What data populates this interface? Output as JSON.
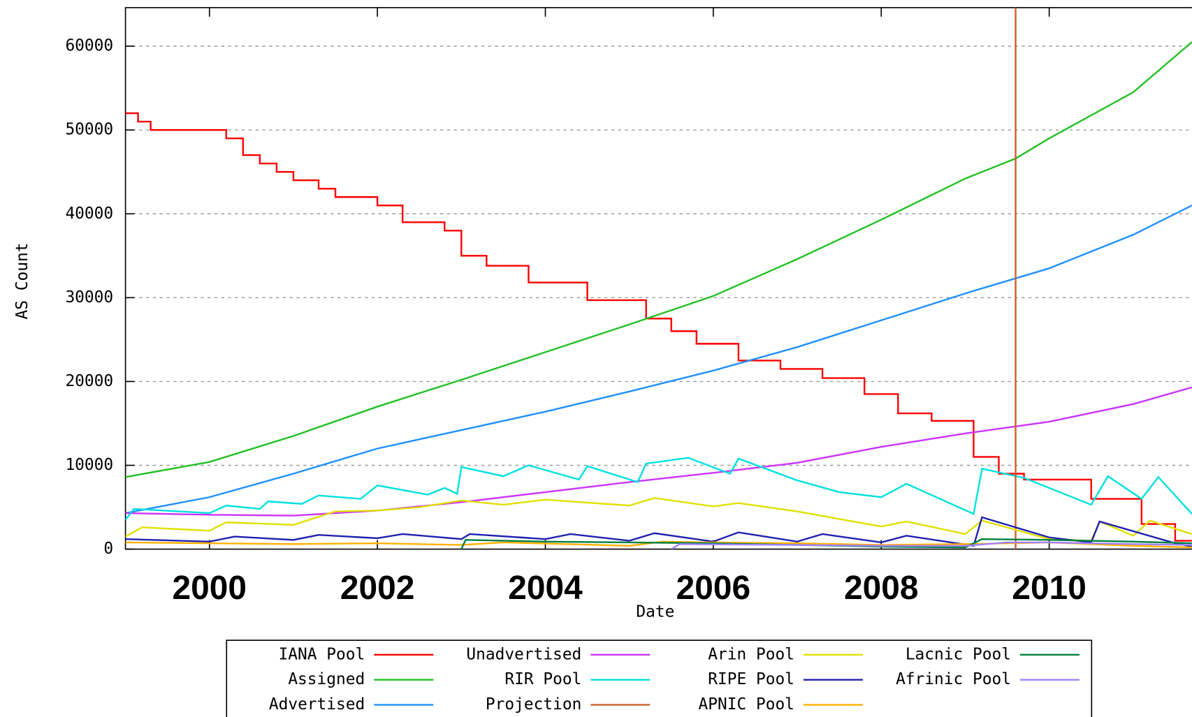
{
  "chart_data": {
    "type": "line",
    "xlabel": "Date",
    "ylabel": "AS Count",
    "xlim": [
      1999,
      2011.7
    ],
    "ylim": [
      0,
      64600
    ],
    "xticks": [
      2000,
      2002,
      2004,
      2006,
      2008,
      2010
    ],
    "yticks": [
      0,
      10000,
      20000,
      30000,
      40000,
      50000,
      60000
    ],
    "grid": true,
    "legend": "bottom",
    "series": [
      {
        "name": "IANA Pool",
        "color": "#ff0000",
        "step": true,
        "x": [
          1999,
          1999.15,
          1999.3,
          2000.2,
          2000.4,
          2000.6,
          2000.8,
          2001,
          2001.3,
          2001.5,
          2002,
          2002.3,
          2002.8,
          2003,
          2003.3,
          2003.8,
          2004.5,
          2005.2,
          2005.5,
          2005.8,
          2006.3,
          2006.8,
          2007.3,
          2007.8,
          2008.2,
          2008.6,
          2009.1,
          2009.4,
          2009.7,
          2010.5,
          2011.1,
          2011.5,
          2011.7
        ],
        "values": [
          52000,
          51000,
          50000,
          49000,
          47000,
          46000,
          45000,
          44000,
          43000,
          42000,
          41000,
          39000,
          38000,
          35000,
          33800,
          31800,
          29700,
          27500,
          26000,
          24500,
          22500,
          21500,
          20400,
          18500,
          16200,
          15300,
          11000,
          9000,
          8300,
          6000,
          3000,
          1000,
          1000
        ]
      },
      {
        "name": "Assigned",
        "color": "#22c022",
        "x": [
          1999,
          2000,
          2001,
          2002,
          2003,
          2004,
          2005,
          2006,
          2007,
          2008,
          2009,
          2009.6,
          2010,
          2011,
          2011.7
        ],
        "values": [
          8600,
          10400,
          13500,
          17000,
          20200,
          23500,
          26800,
          30200,
          34600,
          39300,
          44200,
          46600,
          49000,
          54500,
          60500
        ]
      },
      {
        "name": "Advertised",
        "color": "#1e90ff",
        "x": [
          1999,
          2000,
          2001,
          2002,
          2003,
          2004,
          2005,
          2006,
          2007,
          2008,
          2009,
          2010,
          2011,
          2011.7
        ],
        "values": [
          4300,
          6200,
          9000,
          12000,
          14200,
          16400,
          18800,
          21300,
          24100,
          27300,
          30500,
          33500,
          37500,
          41000
        ]
      },
      {
        "name": "Unadvertised",
        "color": "#cc33ff",
        "x": [
          1999,
          2000,
          2001,
          2002,
          2003,
          2004,
          2005,
          2006,
          2007,
          2008,
          2009,
          2010,
          2011,
          2011.7
        ],
        "values": [
          4300,
          4100,
          4000,
          4600,
          5600,
          6800,
          8000,
          9100,
          10300,
          12200,
          13800,
          15200,
          17300,
          19300
        ]
      },
      {
        "name": "RIR Pool",
        "color": "#00e0e0",
        "x": [
          1999,
          1999.1,
          2000,
          2000.2,
          2000.6,
          2000.7,
          2001.1,
          2001.3,
          2001.8,
          2002,
          2002.6,
          2002.8,
          2002.95,
          2003,
          2003.5,
          2003.8,
          2004.4,
          2004.5,
          2005.1,
          2005.2,
          2005.7,
          2006.2,
          2006.3,
          2007,
          2007.5,
          2008,
          2008.3,
          2009.1,
          2009.2,
          2009.7,
          2010.5,
          2010.7,
          2011.1,
          2011.3,
          2011.7
        ],
        "values": [
          3500,
          4800,
          4300,
          5200,
          4800,
          5700,
          5400,
          6400,
          6000,
          7600,
          6500,
          7300,
          6600,
          9800,
          8700,
          10000,
          8300,
          9900,
          8000,
          10200,
          10900,
          9000,
          10800,
          8200,
          6800,
          6200,
          7800,
          4200,
          9600,
          8500,
          5300,
          8700,
          6000,
          8600,
          4200
        ]
      },
      {
        "name": "Projection",
        "color": "#c8602a",
        "x": [
          2009.6,
          2009.6
        ],
        "values": [
          0,
          64600
        ]
      },
      {
        "name": "Arin Pool",
        "color": "#e0e000",
        "x": [
          1999,
          1999.2,
          2000,
          2000.2,
          2001,
          2001.5,
          2002,
          2002.5,
          2003,
          2003.5,
          2004,
          2005,
          2005.3,
          2006,
          2006.3,
          2007,
          2008,
          2008.3,
          2009,
          2009.2,
          2010,
          2010.5,
          2010.6,
          2011,
          2011.2,
          2011.7
        ],
        "values": [
          1500,
          2600,
          2200,
          3200,
          2900,
          4500,
          4600,
          5000,
          5800,
          5300,
          5900,
          5200,
          6100,
          5100,
          5500,
          4500,
          2700,
          3300,
          1800,
          3400,
          1200,
          1000,
          3300,
          1600,
          3400,
          1800
        ]
      },
      {
        "name": "RIPE Pool",
        "color": "#2020b0",
        "x": [
          1999,
          2000,
          2000.3,
          2001,
          2001.3,
          2002,
          2002.3,
          2003,
          2003.1,
          2004,
          2004.3,
          2005,
          2005.3,
          2006,
          2006.3,
          2007,
          2007.3,
          2008,
          2008.3,
          2009.1,
          2009.2,
          2010,
          2010.5,
          2010.6,
          2011.5,
          2011.7
        ],
        "values": [
          1200,
          900,
          1500,
          1100,
          1700,
          1300,
          1800,
          1200,
          1800,
          1200,
          1800,
          1000,
          1900,
          900,
          2000,
          900,
          1800,
          800,
          1600,
          400,
          3800,
          1400,
          800,
          3300,
          700,
          300
        ]
      },
      {
        "name": "APNIC Pool",
        "color": "#ffb000",
        "x": [
          1999,
          2000,
          2001,
          2002,
          2003,
          2003.5,
          2005,
          2005.4,
          2006,
          2007,
          2008,
          2009,
          2009.5,
          2010,
          2011,
          2011.7
        ],
        "values": [
          800,
          700,
          600,
          700,
          500,
          800,
          400,
          900,
          800,
          700,
          500,
          600,
          700,
          800,
          400,
          200
        ]
      },
      {
        "name": "Lacnic Pool",
        "color": "#008040",
        "x": [
          2003,
          2003.05,
          2004,
          2005,
          2006,
          2007,
          2008,
          2009,
          2009.2,
          2010,
          2011,
          2011.7
        ],
        "values": [
          0,
          1100,
          900,
          800,
          700,
          500,
          300,
          200,
          1200,
          1100,
          900,
          700
        ]
      },
      {
        "name": "Afrinic Pool",
        "color": "#a080ff",
        "x": [
          2005.5,
          2005.6,
          2007,
          2008,
          2009,
          2009.5,
          2010,
          2011,
          2011.7
        ],
        "values": [
          0,
          600,
          500,
          400,
          400,
          800,
          800,
          600,
          500
        ]
      }
    ]
  }
}
